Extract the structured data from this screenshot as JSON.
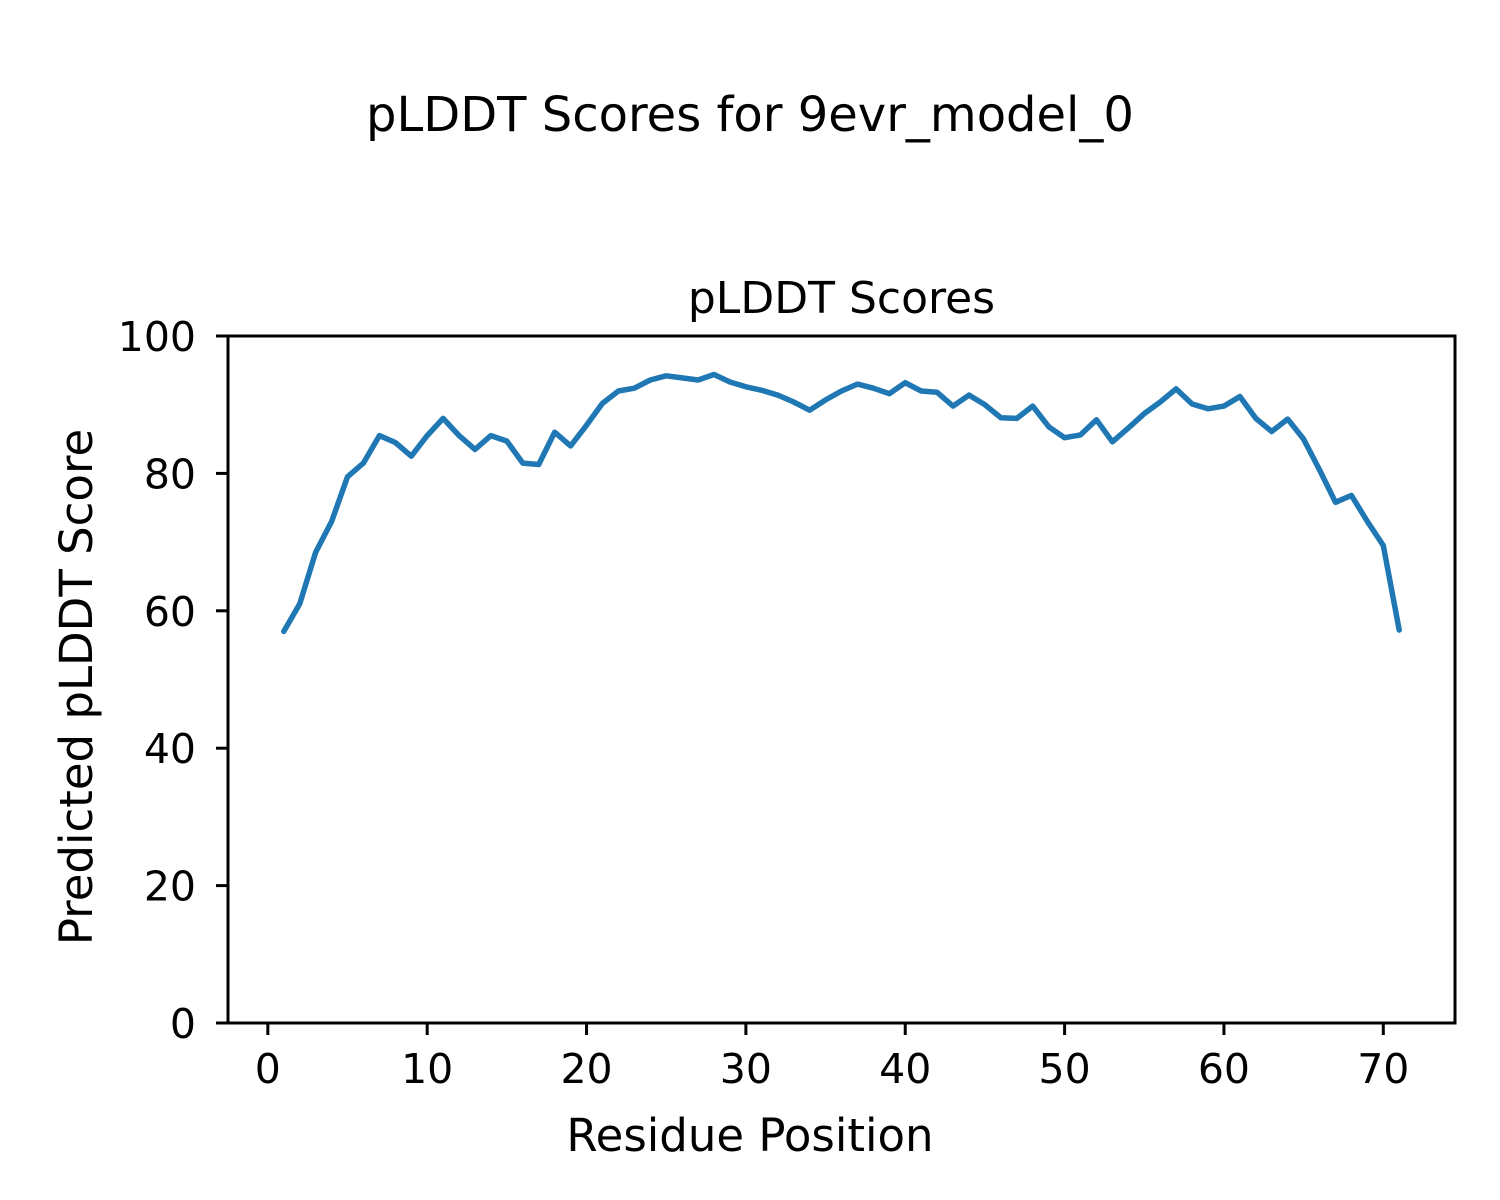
{
  "figure": {
    "suptitle": "pLDDT Scores for 9evr_model_0",
    "background": "#ffffff",
    "text_color": "#000000",
    "spine_color": "#000000"
  },
  "chart_data": {
    "type": "line",
    "title": "pLDDT Scores",
    "xlabel": "Residue Position",
    "ylabel": "Predicted pLDDT Score",
    "xlim": [
      -2.5,
      74.5
    ],
    "ylim": [
      0,
      100
    ],
    "x_ticks": [
      0,
      10,
      20,
      30,
      40,
      50,
      60,
      70
    ],
    "y_ticks": [
      0,
      20,
      40,
      60,
      80,
      100
    ],
    "grid": false,
    "legend": "none",
    "line_color": "#1f77b4",
    "x": [
      1,
      2,
      3,
      4,
      5,
      6,
      7,
      8,
      9,
      10,
      11,
      12,
      13,
      14,
      15,
      16,
      17,
      18,
      19,
      20,
      21,
      22,
      23,
      24,
      25,
      26,
      27,
      28,
      29,
      30,
      31,
      32,
      33,
      34,
      35,
      36,
      37,
      38,
      39,
      40,
      41,
      42,
      43,
      44,
      45,
      46,
      47,
      48,
      49,
      50,
      51,
      52,
      53,
      54,
      55,
      56,
      57,
      58,
      59,
      60,
      61,
      62,
      63,
      64,
      65,
      66,
      67,
      68,
      69,
      70,
      71
    ],
    "series": [
      {
        "name": "pLDDT",
        "values": [
          57.0,
          61.0,
          68.5,
          73.0,
          79.5,
          81.5,
          85.5,
          84.5,
          82.5,
          85.5,
          88.0,
          85.5,
          83.5,
          85.5,
          84.7,
          81.5,
          81.3,
          86.0,
          84.0,
          87.0,
          90.2,
          92.0,
          92.4,
          93.6,
          94.2,
          93.9,
          93.6,
          94.4,
          93.3,
          92.6,
          92.1,
          91.4,
          90.4,
          89.2,
          90.7,
          92.0,
          93.0,
          92.4,
          91.6,
          93.2,
          92.0,
          91.8,
          89.8,
          91.4,
          90.0,
          88.1,
          88.0,
          89.8,
          86.8,
          85.2,
          85.6,
          87.8,
          84.6,
          86.6,
          88.7,
          90.4,
          92.3,
          90.1,
          89.4,
          89.8,
          91.2,
          88.0,
          86.1,
          87.9,
          85.0,
          80.5,
          75.8,
          76.8,
          73.0,
          69.5,
          57.2
        ]
      }
    ]
  }
}
